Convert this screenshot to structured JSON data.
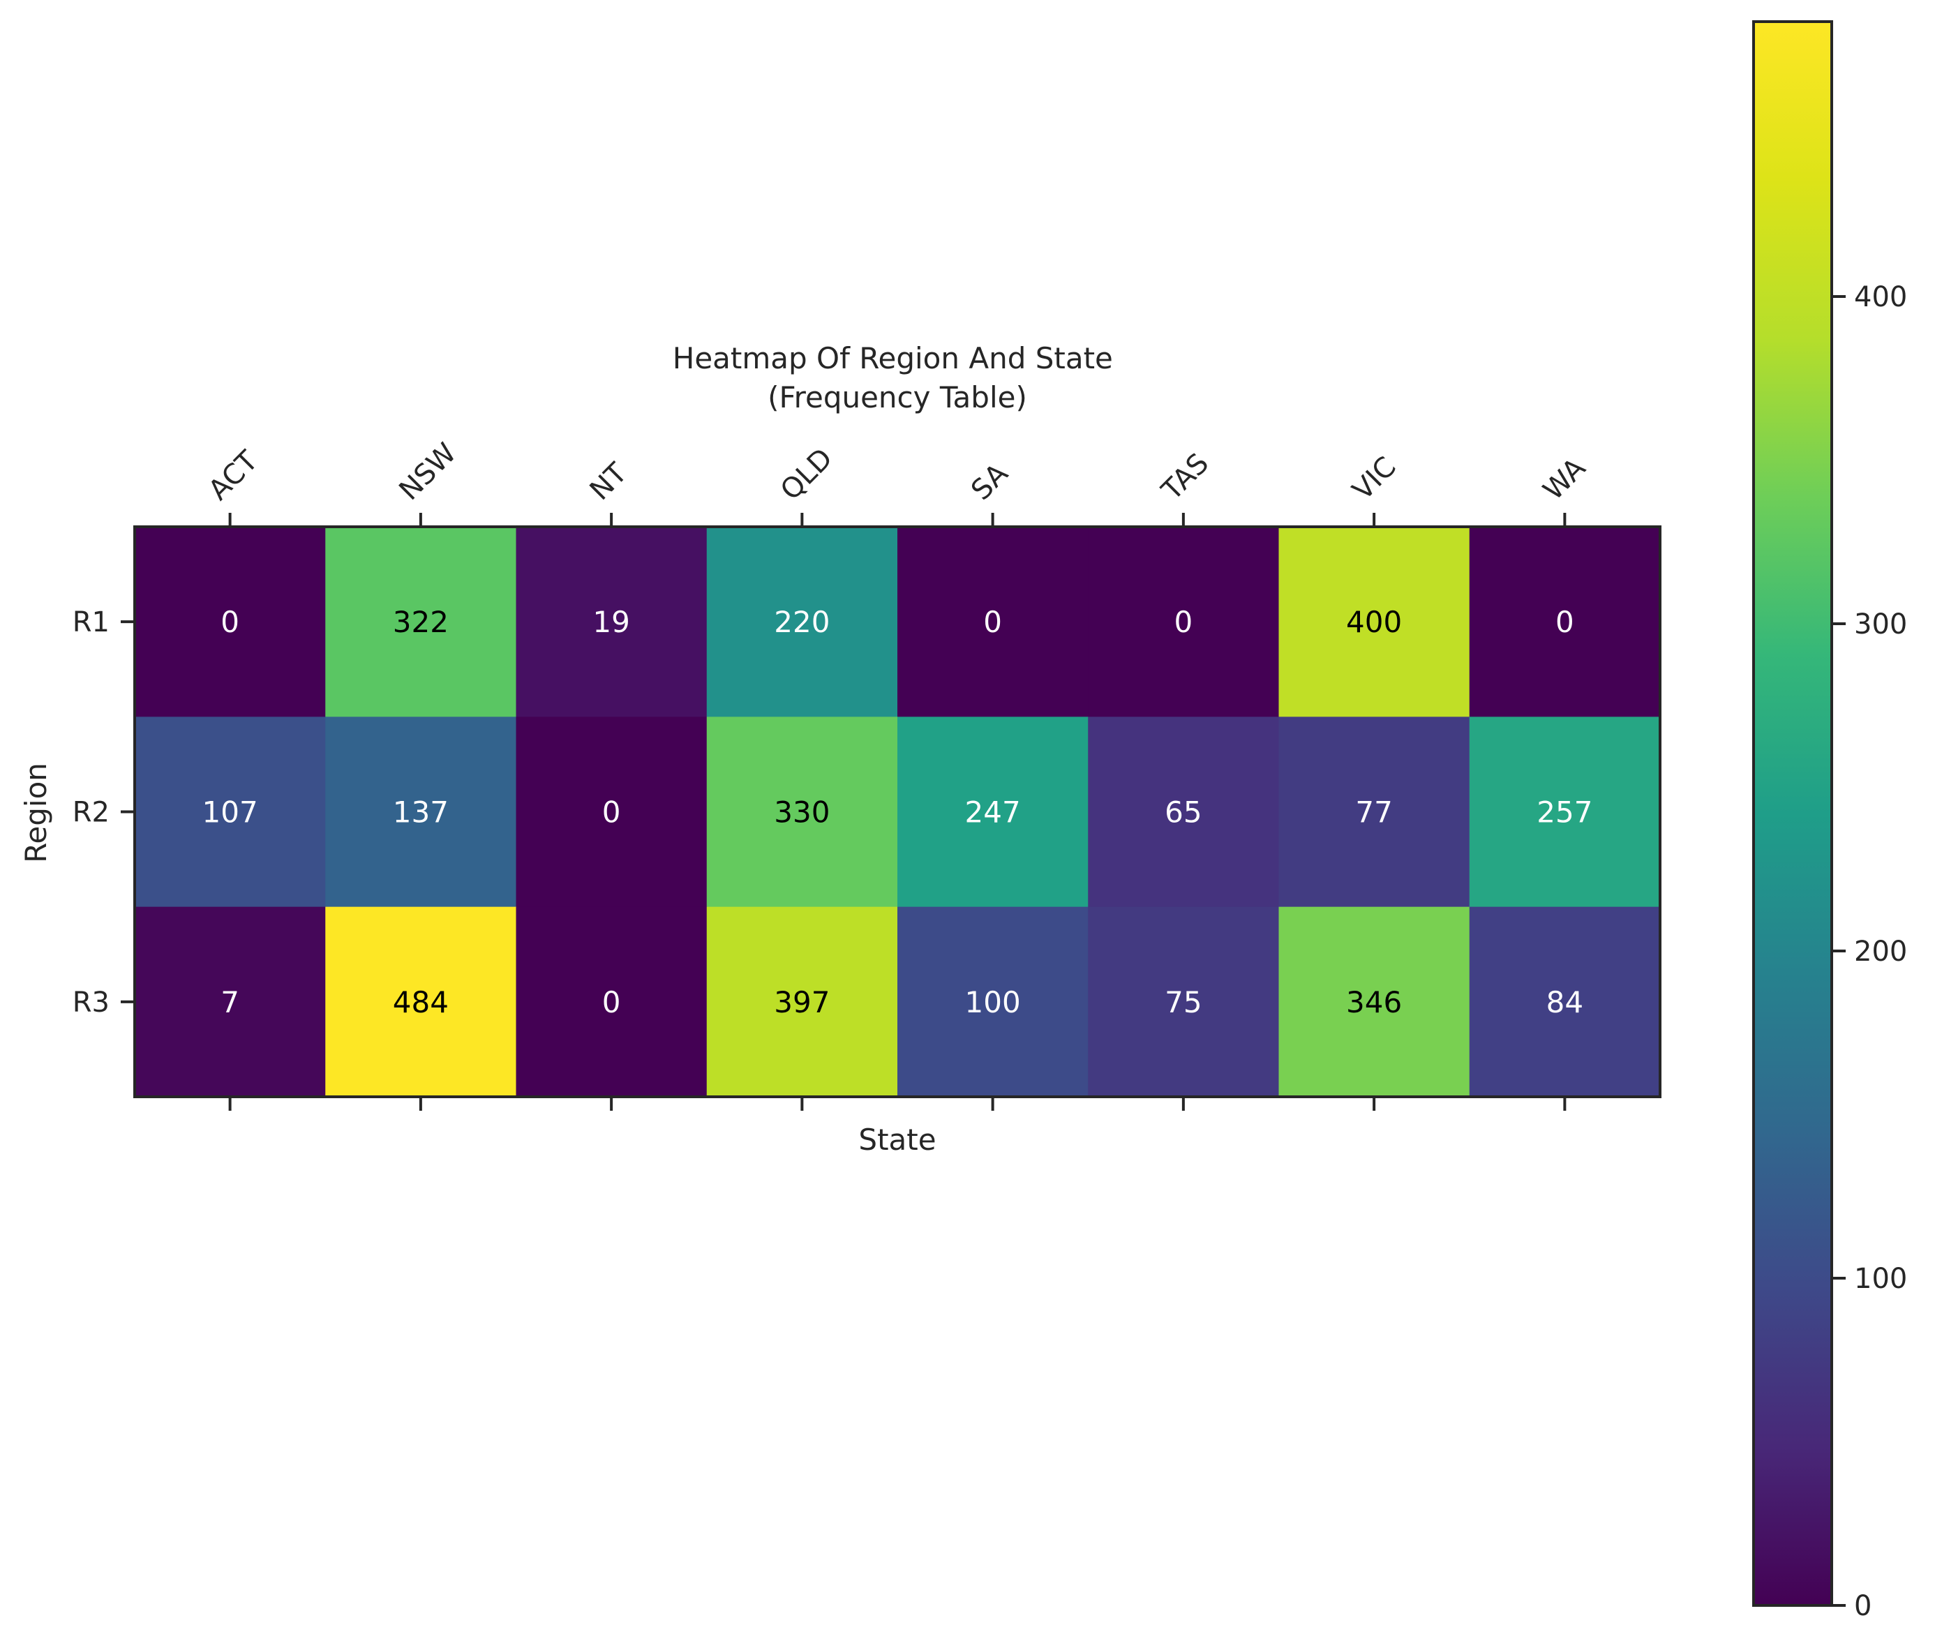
{
  "chart_data": {
    "type": "heatmap",
    "title": "Heatmap Of Region And State\n(Frequency Table)",
    "title_lines": [
      "Heatmap Of Region And State",
      "(Frequency Table)"
    ],
    "xlabel": "State",
    "ylabel": "Region",
    "x_categories": [
      "ACT",
      "NSW",
      "NT",
      "QLD",
      "SA",
      "TAS",
      "VIC",
      "WA"
    ],
    "y_categories": [
      "R1",
      "R2",
      "R3"
    ],
    "values": [
      [
        0,
        322,
        19,
        220,
        0,
        0,
        400,
        0
      ],
      [
        107,
        137,
        0,
        330,
        247,
        65,
        77,
        257
      ],
      [
        7,
        484,
        0,
        397,
        100,
        75,
        346,
        84
      ]
    ],
    "colormap": "viridis",
    "color_range": [
      0,
      484
    ],
    "colorbar": {
      "ticks": [
        0,
        100,
        200,
        300,
        400
      ],
      "tick_labels": [
        "0",
        "100",
        "200",
        "300",
        "400"
      ]
    },
    "x_tick_position": "top",
    "x_tick_rotation": 45,
    "grid": false,
    "annotations": true
  }
}
